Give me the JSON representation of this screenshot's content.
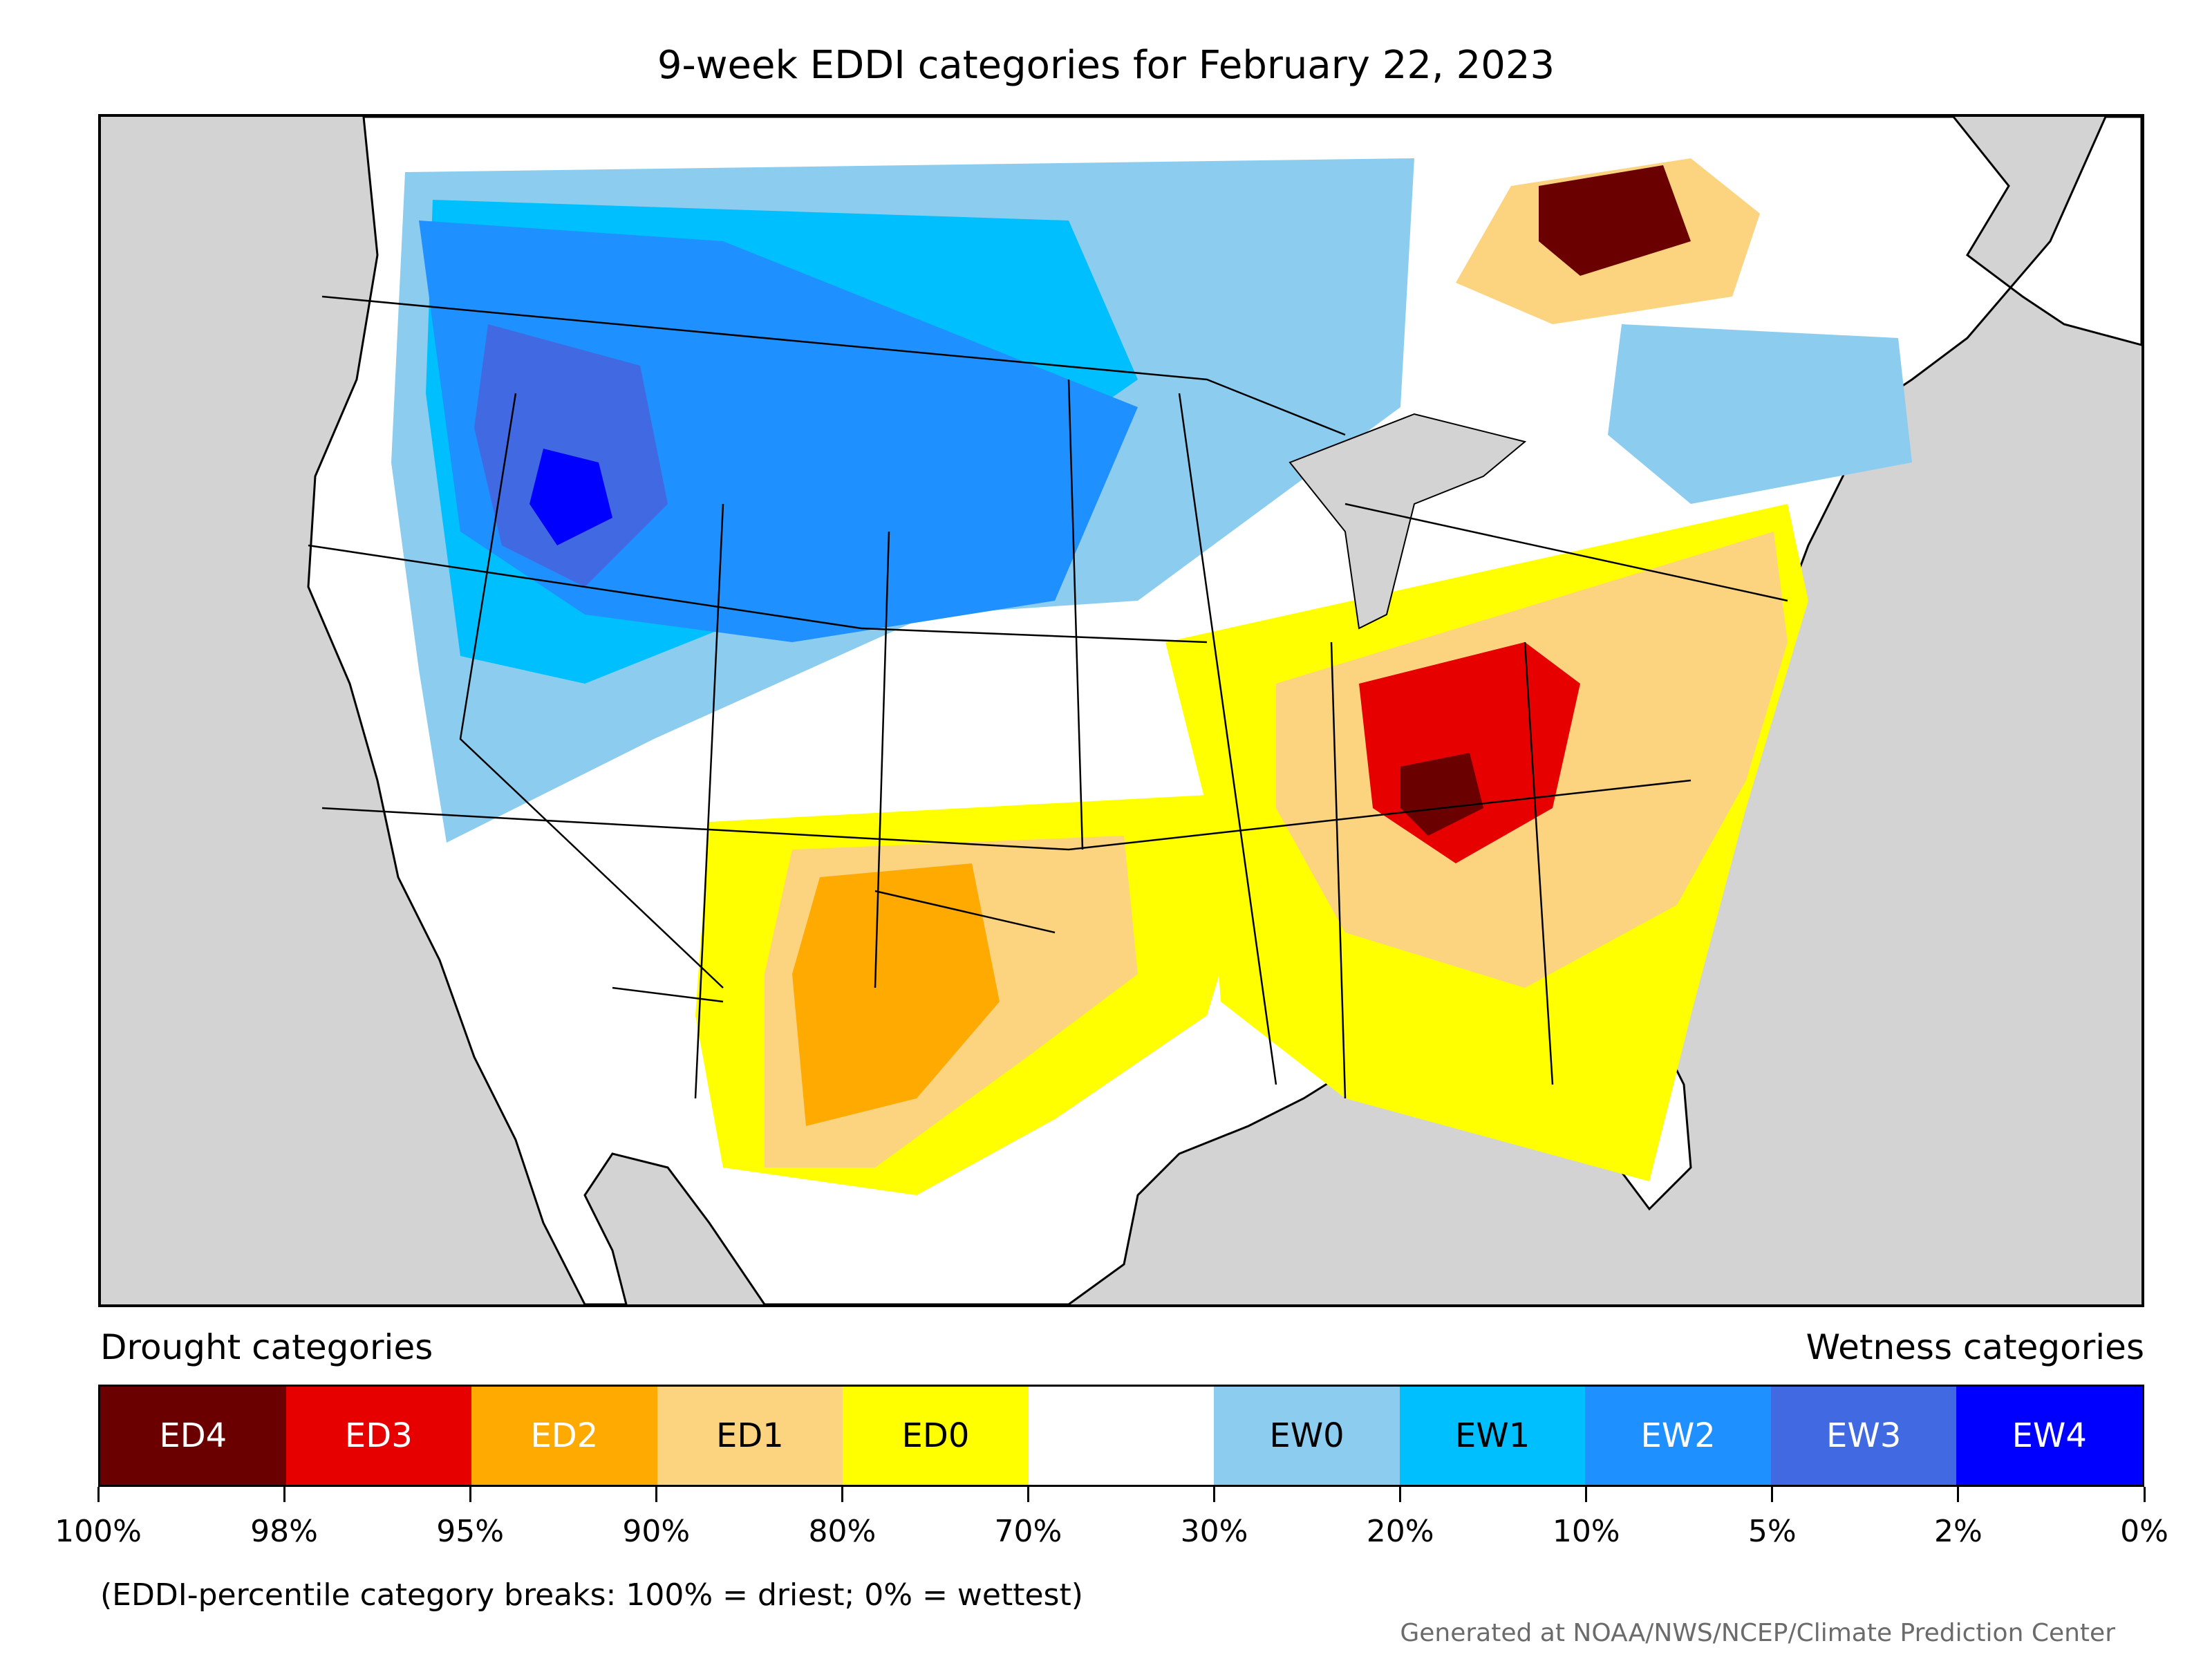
{
  "title": "9-week EDDI categories for February 22, 2023",
  "legend": {
    "drought_heading": "Drought categories",
    "wetness_heading": "Wetness categories",
    "categories": [
      {
        "label": "ED4",
        "color": "#6b0000",
        "text_color": "#ffffff"
      },
      {
        "label": "ED3",
        "color": "#e60000",
        "text_color": "#ffffff"
      },
      {
        "label": "ED2",
        "color": "#ffaa00",
        "text_color": "#ffffff"
      },
      {
        "label": "ED1",
        "color": "#fcd37f",
        "text_color": "#000000"
      },
      {
        "label": "ED0",
        "color": "#ffff00",
        "text_color": "#000000"
      },
      {
        "label": "",
        "color": "#ffffff",
        "text_color": "#000000"
      },
      {
        "label": "EW0",
        "color": "#8ccdef",
        "text_color": "#000000"
      },
      {
        "label": "EW1",
        "color": "#00bfff",
        "text_color": "#000000"
      },
      {
        "label": "EW2",
        "color": "#1e90ff",
        "text_color": "#ffffff"
      },
      {
        "label": "EW3",
        "color": "#4169e1",
        "text_color": "#ffffff"
      },
      {
        "label": "EW4",
        "color": "#0000ff",
        "text_color": "#ffffff"
      }
    ],
    "breaks": [
      "100%",
      "98%",
      "95%",
      "90%",
      "80%",
      "70%",
      "30%",
      "20%",
      "10%",
      "5%",
      "2%",
      "0%"
    ]
  },
  "note": "(EDDI-percentile category breaks: 100% = driest; 0% = wettest)",
  "credit": "Generated at NOAA/NWS/NCEP/Climate Prediction Center",
  "map": {
    "land_color": "#ffffff",
    "background_color": "#d3d3d3",
    "border_color": "#000000"
  }
}
